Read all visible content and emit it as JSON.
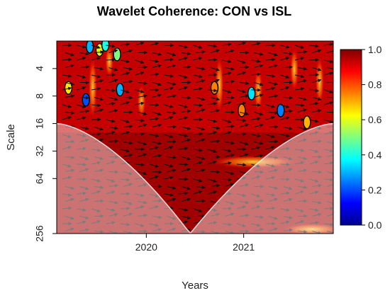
{
  "chart_data": {
    "type": "heatmap",
    "title": "Wavelet Coherence: CON vs ISL",
    "xlabel": "Years",
    "ylabel": "Scale",
    "x_ticks": [
      {
        "label": "2020",
        "value": 2020.0
      },
      {
        "label": "2021",
        "value": 2021.0
      }
    ],
    "xlim": [
      2019.08,
      2021.92
    ],
    "y_scale": "log2",
    "y_reversed": true,
    "y_ticks": [
      {
        "label": "4",
        "value": 4
      },
      {
        "label": "8",
        "value": 8
      },
      {
        "label": "16",
        "value": 16
      },
      {
        "label": "32",
        "value": 32
      },
      {
        "label": "64",
        "value": 64
      },
      {
        "label": "256",
        "value": 256
      }
    ],
    "ylim": [
      2,
      256
    ],
    "colorbar": {
      "range": [
        0.0,
        1.0
      ],
      "ticks": [
        "0.0",
        "0.2",
        "0.4",
        "0.6",
        "0.8",
        "1.0"
      ],
      "colors": [
        "#00008f",
        "#0000ff",
        "#007fff",
        "#00ffff",
        "#7fff7f",
        "#ffff00",
        "#ff7f00",
        "#ff0000",
        "#7f0000"
      ]
    },
    "cone_of_influence": {
      "scale_at_edges": 16,
      "scale_at_center": 256,
      "center_x": 2020.45,
      "shade_color": "#ffffff"
    },
    "islands": [
      {
        "x": 2019.42,
        "scale": 2.3,
        "coherence": 0.3
      },
      {
        "x": 2019.52,
        "scale": 2.5,
        "coherence": 0.6
      },
      {
        "x": 2019.58,
        "scale": 2.2,
        "coherence": 0.4
      },
      {
        "x": 2019.7,
        "scale": 2.8,
        "coherence": 0.5
      },
      {
        "x": 2019.2,
        "scale": 6.5,
        "coherence": 0.65
      },
      {
        "x": 2019.38,
        "scale": 8.8,
        "coherence": 0.2
      },
      {
        "x": 2019.73,
        "scale": 6.8,
        "coherence": 0.3
      },
      {
        "x": 2020.7,
        "scale": 6.5,
        "coherence": 0.75
      },
      {
        "x": 2021.08,
        "scale": 7.5,
        "coherence": 0.35
      },
      {
        "x": 2020.98,
        "scale": 11.5,
        "coherence": 0.75
      },
      {
        "x": 2021.38,
        "scale": 11.5,
        "coherence": 0.25
      },
      {
        "x": 2021.65,
        "scale": 15.5,
        "coherence": 0.7
      }
    ]
  }
}
